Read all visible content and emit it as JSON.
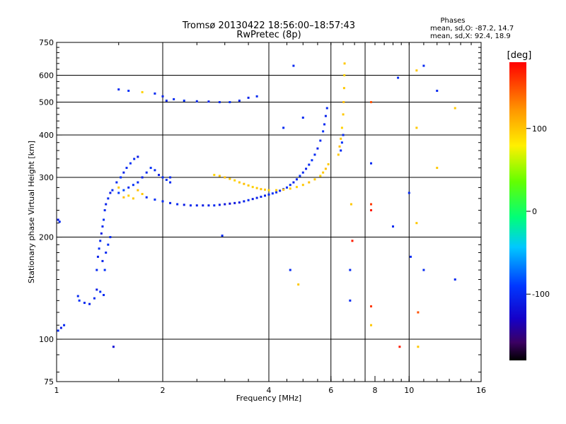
{
  "chart_data": {
    "type": "scatter",
    "title": "Tromsø 20130422 18:56:00–18:57:43",
    "subtitle": "RwPretec (8p)",
    "xlabel": "Frequency [MHz]",
    "ylabel": "Stationary phase Virtual Height [km]",
    "x_scale": "log",
    "y_scale": "log",
    "xlim": [
      1,
      16
    ],
    "ylim": [
      75,
      750
    ],
    "grid": true,
    "x_ticks": [
      1,
      2,
      4,
      6,
      8,
      10,
      16
    ],
    "x_tick_labels": [
      "1",
      "2",
      "4",
      "6",
      "8",
      "10",
      "16"
    ],
    "x_grid": [
      2,
      4,
      6,
      7.5,
      10
    ],
    "y_ticks": [
      75,
      100,
      200,
      300,
      400,
      500,
      600,
      750
    ],
    "y_tick_labels": [
      "75",
      "100",
      "200",
      "300",
      "400",
      "500",
      "600",
      "750"
    ],
    "y_grid": [
      100,
      200,
      300,
      400,
      500,
      600
    ],
    "stats": {
      "heading": "Phases",
      "line_o": "mean, sd,O: -87.2, 14.7",
      "line_x": "mean, sd,X:  92.4, 18.9"
    },
    "colorbar": {
      "label": "[deg]",
      "range": [
        -180,
        180
      ],
      "ticks": [
        100,
        0,
        -100
      ],
      "tick_labels": [
        "100",
        "0",
        "-100"
      ],
      "colormap": "rainbow"
    },
    "series": [
      {
        "points": [
          [
            1.01,
            225,
            -110
          ],
          [
            1.02,
            222,
            -100
          ],
          [
            1.01,
            106,
            -100
          ],
          [
            1.03,
            108,
            -110
          ],
          [
            1.05,
            110,
            -100
          ],
          [
            1.16,
            130,
            -95
          ],
          [
            1.2,
            128,
            -100
          ],
          [
            1.24,
            127,
            -105
          ],
          [
            1.28,
            132,
            -100
          ],
          [
            1.3,
            140,
            -110
          ],
          [
            1.33,
            138,
            -95
          ],
          [
            1.36,
            135,
            -100
          ],
          [
            1.3,
            160,
            -100
          ],
          [
            1.31,
            175,
            -105
          ],
          [
            1.32,
            185,
            -95
          ],
          [
            1.33,
            195,
            -100
          ],
          [
            1.34,
            205,
            -110
          ],
          [
            1.35,
            215,
            -100
          ],
          [
            1.36,
            225,
            -95
          ],
          [
            1.37,
            240,
            -100
          ],
          [
            1.38,
            250,
            -105
          ],
          [
            1.4,
            260,
            -100
          ],
          [
            1.42,
            270,
            -110
          ],
          [
            1.44,
            275,
            -100
          ],
          [
            1.38,
            180,
            -100
          ],
          [
            1.4,
            190,
            -95
          ],
          [
            1.42,
            200,
            -100
          ],
          [
            1.35,
            170,
            -105
          ],
          [
            1.37,
            160,
            -95
          ],
          [
            1.48,
            290,
            -100
          ],
          [
            1.52,
            300,
            -95
          ],
          [
            1.55,
            310,
            -105
          ],
          [
            1.58,
            320,
            -100
          ],
          [
            1.62,
            330,
            -95
          ],
          [
            1.66,
            340,
            -100
          ],
          [
            1.7,
            345,
            -110
          ],
          [
            1.5,
            270,
            -90
          ],
          [
            1.55,
            275,
            -85
          ],
          [
            1.6,
            280,
            -100
          ],
          [
            1.65,
            285,
            -95
          ],
          [
            1.7,
            290,
            -100
          ],
          [
            1.75,
            300,
            -105
          ],
          [
            1.8,
            310,
            -100
          ],
          [
            1.85,
            320,
            -95
          ],
          [
            1.9,
            315,
            -100
          ],
          [
            1.95,
            305,
            -110
          ],
          [
            2.0,
            300,
            -100
          ],
          [
            2.05,
            295,
            -95
          ],
          [
            2.1,
            290,
            -100
          ],
          [
            1.6,
            265,
            95
          ],
          [
            1.65,
            260,
            100
          ],
          [
            1.7,
            275,
            105
          ],
          [
            1.75,
            268,
            100
          ],
          [
            1.5,
            280,
            100
          ],
          [
            1.55,
            262,
            105
          ],
          [
            1.8,
            262,
            -100
          ],
          [
            1.9,
            258,
            -95
          ],
          [
            2.0,
            255,
            -100
          ],
          [
            2.1,
            252,
            -105
          ],
          [
            2.2,
            250,
            -100
          ],
          [
            2.3,
            249,
            -110
          ],
          [
            2.4,
            248,
            -100
          ],
          [
            2.5,
            248,
            -105
          ],
          [
            2.6,
            248,
            -110
          ],
          [
            2.7,
            248,
            -105
          ],
          [
            2.8,
            248,
            -100
          ],
          [
            2.9,
            249,
            -110
          ],
          [
            3.0,
            250,
            -115
          ],
          [
            3.1,
            251,
            -120
          ],
          [
            3.2,
            252,
            -115
          ],
          [
            3.3,
            253,
            -110
          ],
          [
            3.4,
            255,
            -105
          ],
          [
            3.5,
            257,
            -100
          ],
          [
            3.6,
            259,
            -110
          ],
          [
            3.7,
            261,
            -105
          ],
          [
            3.8,
            263,
            -100
          ],
          [
            3.9,
            265,
            -105
          ],
          [
            4.0,
            267,
            -100
          ],
          [
            4.1,
            269,
            -95
          ],
          [
            4.2,
            271,
            -100
          ],
          [
            4.3,
            274,
            -105
          ],
          [
            4.4,
            277,
            -100
          ],
          [
            4.5,
            280,
            -95
          ],
          [
            4.6,
            285,
            -100
          ],
          [
            4.7,
            290,
            -105
          ],
          [
            4.8,
            296,
            -100
          ],
          [
            4.9,
            303,
            -95
          ],
          [
            5.0,
            310,
            -100
          ],
          [
            5.1,
            318,
            -105
          ],
          [
            5.2,
            327,
            -100
          ],
          [
            5.3,
            337,
            -95
          ],
          [
            5.4,
            350,
            -100
          ],
          [
            5.5,
            365,
            -105
          ],
          [
            5.6,
            385,
            -100
          ],
          [
            5.7,
            410,
            -95
          ],
          [
            5.75,
            430,
            -100
          ],
          [
            5.8,
            455,
            -105
          ],
          [
            5.85,
            480,
            -100
          ],
          [
            2.8,
            305,
            95
          ],
          [
            2.9,
            303,
            100
          ],
          [
            3.0,
            300,
            105
          ],
          [
            3.1,
            297,
            100
          ],
          [
            3.2,
            294,
            95
          ],
          [
            3.3,
            290,
            100
          ],
          [
            3.4,
            287,
            105
          ],
          [
            3.5,
            284,
            100
          ],
          [
            3.6,
            281,
            95
          ],
          [
            3.7,
            279,
            100
          ],
          [
            3.8,
            277,
            105
          ],
          [
            3.9,
            276,
            100
          ],
          [
            4.0,
            275,
            95
          ],
          [
            4.2,
            275,
            100
          ],
          [
            4.4,
            276,
            105
          ],
          [
            4.6,
            278,
            100
          ],
          [
            4.8,
            281,
            95
          ],
          [
            5.0,
            285,
            100
          ],
          [
            5.2,
            290,
            105
          ],
          [
            5.4,
            296,
            100
          ],
          [
            5.6,
            303,
            95
          ],
          [
            5.7,
            310,
            100
          ],
          [
            5.8,
            318,
            105
          ],
          [
            5.9,
            328,
            100
          ],
          [
            6.3,
            350,
            100
          ],
          [
            6.35,
            370,
            105
          ],
          [
            6.4,
            390,
            100
          ],
          [
            6.45,
            420,
            95
          ],
          [
            6.5,
            460,
            100
          ],
          [
            6.52,
            500,
            105
          ],
          [
            6.54,
            550,
            100
          ],
          [
            6.55,
            600,
            95
          ],
          [
            6.56,
            650,
            100
          ],
          [
            6.4,
            360,
            -100
          ],
          [
            6.45,
            380,
            -95
          ],
          [
            6.5,
            400,
            -100
          ],
          [
            1.5,
            545,
            -100
          ],
          [
            1.6,
            540,
            -95
          ],
          [
            1.75,
            535,
            95
          ],
          [
            1.9,
            530,
            -100
          ],
          [
            2.0,
            520,
            -105
          ],
          [
            2.05,
            505,
            -100
          ],
          [
            2.15,
            510,
            -100
          ],
          [
            2.3,
            505,
            -95
          ],
          [
            2.5,
            503,
            -100
          ],
          [
            2.7,
            502,
            -105
          ],
          [
            2.9,
            500,
            -100
          ],
          [
            3.1,
            500,
            -95
          ],
          [
            3.3,
            505,
            -100
          ],
          [
            3.5,
            515,
            -105
          ],
          [
            3.7,
            520,
            -100
          ],
          [
            2.95,
            202,
            -100
          ],
          [
            2.1,
            300,
            -100
          ],
          [
            1.45,
            95,
            -120
          ],
          [
            1.15,
            134,
            -100
          ],
          [
            4.4,
            420,
            -100
          ],
          [
            4.7,
            640,
            -100
          ],
          [
            5.0,
            450,
            -100
          ],
          [
            4.6,
            160,
            -100
          ],
          [
            4.85,
            145,
            100
          ],
          [
            6.8,
            160,
            -100
          ],
          [
            6.8,
            130,
            -100
          ],
          [
            6.85,
            250,
            100
          ],
          [
            6.9,
            195,
            170
          ],
          [
            7.8,
            500,
            150
          ],
          [
            7.8,
            330,
            -100
          ],
          [
            7.8,
            250,
            160
          ],
          [
            7.8,
            240,
            170
          ],
          [
            7.8,
            125,
            160
          ],
          [
            7.8,
            110,
            100
          ],
          [
            9.0,
            215,
            -100
          ],
          [
            9.3,
            590,
            -100
          ],
          [
            9.4,
            95,
            170
          ],
          [
            10.0,
            270,
            -100
          ],
          [
            10.1,
            175,
            -100
          ],
          [
            10.5,
            620,
            100
          ],
          [
            10.5,
            420,
            100
          ],
          [
            10.5,
            220,
            100
          ],
          [
            10.6,
            120,
            150
          ],
          [
            10.6,
            95,
            100
          ],
          [
            11.0,
            640,
            -100
          ],
          [
            11.0,
            160,
            -100
          ],
          [
            12.0,
            540,
            -100
          ],
          [
            12.0,
            320,
            100
          ],
          [
            13.5,
            150,
            -100
          ],
          [
            13.5,
            480,
            100
          ]
        ]
      }
    ]
  }
}
